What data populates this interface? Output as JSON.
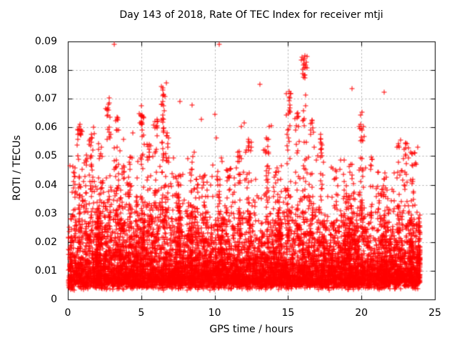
{
  "page": {
    "background": "#ffffff"
  },
  "chart_data": {
    "type": "scatter",
    "title": "Day 143 of 2018, Rate Of TEC Index for receiver mtji",
    "xlabel": "GPS time / hours",
    "ylabel": "ROTI / TECUs",
    "xlim": [
      0,
      25
    ],
    "ylim": [
      0,
      0.09
    ],
    "x_ticks": [
      {
        "value": 0,
        "label": "0"
      },
      {
        "value": 5,
        "label": "5"
      },
      {
        "value": 10,
        "label": "10"
      },
      {
        "value": 15,
        "label": "15"
      },
      {
        "value": 20,
        "label": "20"
      },
      {
        "value": 25,
        "label": "25"
      }
    ],
    "y_ticks": [
      {
        "value": 0,
        "label": "0"
      },
      {
        "value": 0.01,
        "label": "0.01"
      },
      {
        "value": 0.02,
        "label": "0.02"
      },
      {
        "value": 0.03,
        "label": "0.03"
      },
      {
        "value": 0.04,
        "label": "0.04"
      },
      {
        "value": 0.05,
        "label": "0.05"
      },
      {
        "value": 0.06,
        "label": "0.06"
      },
      {
        "value": 0.07,
        "label": "0.07"
      },
      {
        "value": 0.08,
        "label": "0.08"
      },
      {
        "value": 0.09,
        "label": "0.09"
      }
    ],
    "grid": {
      "show": true,
      "color": "#a9a9a9",
      "dash": [
        2,
        3
      ]
    },
    "frame_color": "#000000",
    "legend": null,
    "marker": {
      "shape": "plus",
      "color": "#ff0000",
      "size": 7
    },
    "data_model": {
      "seed": 20180143,
      "t_range": [
        0,
        23.93
      ],
      "baseline": {
        "n": 6500,
        "floor_min": 0.0035,
        "floor_span": 0.003,
        "exp_mean_main": 0.006,
        "exp_mean_tail": 0.012,
        "tail_frac": 0.18
      },
      "texture_clusters": {
        "count": 170,
        "pts_min": 5,
        "pts_max": 18,
        "vmax_min": 0.028,
        "vmax_max": 0.047,
        "t_sigma": 0.07
      },
      "spikes": [
        {
          "t": 0.35,
          "peak": 0.047,
          "n": 22
        },
        {
          "t": 0.75,
          "peak": 0.062,
          "n": 40
        },
        {
          "t": 1.2,
          "peak": 0.051,
          "n": 25
        },
        {
          "t": 1.55,
          "peak": 0.061,
          "n": 40
        },
        {
          "t": 2.2,
          "peak": 0.055,
          "n": 28
        },
        {
          "t": 2.75,
          "peak": 0.071,
          "n": 40
        },
        {
          "t": 3.3,
          "peak": 0.064,
          "n": 35
        },
        {
          "t": 3.7,
          "peak": 0.048,
          "n": 20
        },
        {
          "t": 4.15,
          "peak": 0.05,
          "n": 25
        },
        {
          "t": 5.0,
          "peak": 0.066,
          "n": 45
        },
        {
          "t": 5.45,
          "peak": 0.055,
          "n": 25
        },
        {
          "t": 5.95,
          "peak": 0.064,
          "n": 32
        },
        {
          "t": 6.4,
          "peak": 0.075,
          "n": 48
        },
        {
          "t": 6.75,
          "peak": 0.062,
          "n": 26
        },
        {
          "t": 7.5,
          "peak": 0.044,
          "n": 20
        },
        {
          "t": 8.4,
          "peak": 0.048,
          "n": 22
        },
        {
          "t": 9.2,
          "peak": 0.045,
          "n": 18
        },
        {
          "t": 10.2,
          "peak": 0.044,
          "n": 22
        },
        {
          "t": 10.9,
          "peak": 0.046,
          "n": 22
        },
        {
          "t": 11.65,
          "peak": 0.053,
          "n": 30
        },
        {
          "t": 12.3,
          "peak": 0.056,
          "n": 28
        },
        {
          "t": 13.5,
          "peak": 0.057,
          "n": 32
        },
        {
          "t": 14.2,
          "peak": 0.048,
          "n": 22
        },
        {
          "t": 15.0,
          "peak": 0.073,
          "n": 40
        },
        {
          "t": 15.6,
          "peak": 0.066,
          "n": 28
        },
        {
          "t": 16.05,
          "peak": 0.0855,
          "n": 45
        },
        {
          "t": 16.55,
          "peak": 0.063,
          "n": 28
        },
        {
          "t": 17.2,
          "peak": 0.058,
          "n": 30
        },
        {
          "t": 18.2,
          "peak": 0.046,
          "n": 20
        },
        {
          "t": 19.3,
          "peak": 0.048,
          "n": 20
        },
        {
          "t": 19.95,
          "peak": 0.066,
          "n": 36
        },
        {
          "t": 20.6,
          "peak": 0.05,
          "n": 22
        },
        {
          "t": 21.6,
          "peak": 0.046,
          "n": 20
        },
        {
          "t": 22.5,
          "peak": 0.056,
          "n": 26
        },
        {
          "t": 23.0,
          "peak": 0.055,
          "n": 26
        },
        {
          "t": 23.5,
          "peak": 0.052,
          "n": 26
        }
      ]
    }
  }
}
